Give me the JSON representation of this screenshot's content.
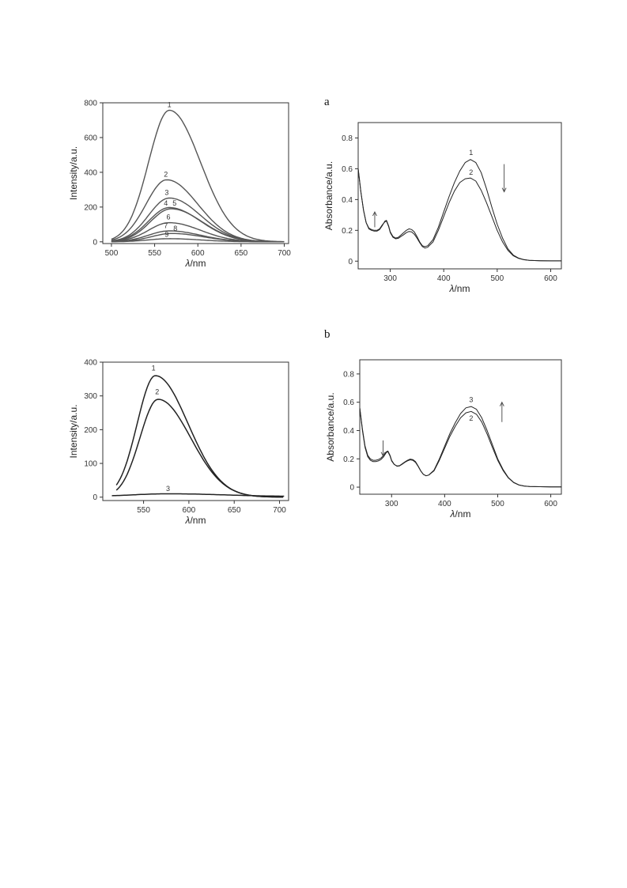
{
  "panel_labels": [
    "a",
    "b"
  ],
  "chart_data": [
    {
      "type": "line",
      "xlabel": "λ/nm",
      "ylabel": "Intensity/a.u.",
      "xlim": [
        490,
        705
      ],
      "ylim": [
        -10,
        800
      ],
      "xticks": [
        500,
        550,
        600,
        650,
        700
      ],
      "yticks": [
        0,
        200,
        400,
        600,
        800
      ],
      "style": {
        "stroke": "#555555",
        "width": 1.4
      },
      "series": [
        {
          "label": "1",
          "peak": 757,
          "center": 567,
          "w_left": 24,
          "w_right": 36,
          "x_start": 500,
          "label_at": [
            567,
            775
          ]
        },
        {
          "label": "2",
          "peak": 357,
          "center": 564,
          "w_left": 24,
          "w_right": 36,
          "x_start": 500,
          "label_at": [
            563,
            375
          ]
        },
        {
          "label": "3",
          "peak": 252,
          "center": 567,
          "w_left": 24,
          "w_right": 36,
          "x_start": 500,
          "label_at": [
            564,
            270
          ]
        },
        {
          "label": "4",
          "peak": 197,
          "center": 567,
          "w_left": 24,
          "w_right": 36,
          "x_start": 500,
          "label_at": [
            563,
            208
          ]
        },
        {
          "label": "5",
          "peak": 190,
          "center": 569,
          "w_left": 24,
          "w_right": 36,
          "x_start": 500,
          "label_at": [
            573,
            208
          ]
        },
        {
          "label": "6",
          "peak": 110,
          "center": 567,
          "w_left": 24,
          "w_right": 36,
          "x_start": 500,
          "label_at": [
            566,
            128
          ]
        },
        {
          "label": "7",
          "peak": 63,
          "center": 567,
          "w_left": 24,
          "w_right": 36,
          "x_start": 500,
          "label_at": [
            563,
            78
          ]
        },
        {
          "label": "8",
          "peak": 48,
          "center": 570,
          "w_left": 24,
          "w_right": 36,
          "x_start": 500,
          "label_at": [
            574,
            62
          ]
        },
        {
          "label": "9",
          "peak": 18,
          "center": 567,
          "w_left": 24,
          "w_right": 36,
          "x_start": 500,
          "label_at": [
            564,
            28
          ]
        }
      ]
    },
    {
      "type": "line",
      "xlabel": "λ/nm",
      "ylabel": "Absorbance/a.u.",
      "xlim": [
        240,
        620
      ],
      "ylim": [
        -0.05,
        0.9
      ],
      "xticks": [
        300,
        400,
        500,
        600
      ],
      "yticks": [
        0.0,
        0.2,
        0.4,
        0.6,
        0.8
      ],
      "style": {
        "stroke": "#222222",
        "width": 1.0
      },
      "series": [
        {
          "label": "1",
          "label_at": [
            451,
            0.69
          ],
          "x": [
            240,
            245,
            250,
            255,
            260,
            265,
            270,
            275,
            280,
            285,
            290,
            293,
            297,
            300,
            305,
            310,
            315,
            320,
            325,
            330,
            335,
            340,
            345,
            350,
            355,
            360,
            365,
            370,
            380,
            390,
            400,
            410,
            420,
            430,
            440,
            450,
            460,
            470,
            480,
            490,
            500,
            510,
            520,
            530,
            540,
            550,
            560,
            580,
            600,
            620
          ],
          "y": [
            0.6,
            0.45,
            0.33,
            0.25,
            0.21,
            0.2,
            0.195,
            0.195,
            0.205,
            0.23,
            0.26,
            0.265,
            0.23,
            0.19,
            0.16,
            0.15,
            0.155,
            0.17,
            0.185,
            0.2,
            0.21,
            0.205,
            0.19,
            0.16,
            0.125,
            0.1,
            0.095,
            0.1,
            0.14,
            0.22,
            0.32,
            0.42,
            0.51,
            0.585,
            0.64,
            0.66,
            0.64,
            0.575,
            0.47,
            0.35,
            0.24,
            0.15,
            0.08,
            0.04,
            0.02,
            0.01,
            0.005,
            0.003,
            0.002,
            0.002
          ]
        },
        {
          "label": "2",
          "label_at": [
            451,
            0.56
          ],
          "x": [
            240,
            245,
            250,
            255,
            260,
            265,
            270,
            275,
            280,
            285,
            290,
            293,
            297,
            300,
            305,
            310,
            315,
            320,
            325,
            330,
            335,
            340,
            345,
            350,
            355,
            360,
            365,
            370,
            380,
            390,
            400,
            410,
            420,
            430,
            440,
            450,
            460,
            470,
            480,
            490,
            500,
            510,
            520,
            530,
            540,
            550,
            560,
            580,
            600,
            620
          ],
          "y": [
            0.6,
            0.45,
            0.33,
            0.25,
            0.215,
            0.205,
            0.2,
            0.2,
            0.21,
            0.235,
            0.255,
            0.26,
            0.225,
            0.185,
            0.155,
            0.145,
            0.148,
            0.16,
            0.172,
            0.185,
            0.193,
            0.19,
            0.175,
            0.15,
            0.12,
            0.095,
            0.085,
            0.09,
            0.125,
            0.2,
            0.29,
            0.38,
            0.455,
            0.51,
            0.535,
            0.54,
            0.52,
            0.46,
            0.38,
            0.29,
            0.2,
            0.125,
            0.07,
            0.035,
            0.018,
            0.009,
            0.005,
            0.003,
            0.002,
            0.002
          ]
        }
      ],
      "annotations": [
        {
          "type": "arrow",
          "direction": "up",
          "x": 271,
          "y_from": 0.22,
          "y_to": 0.32
        },
        {
          "type": "arrow",
          "direction": "down",
          "x": 513,
          "y_from": 0.63,
          "y_to": 0.45
        }
      ]
    },
    {
      "type": "line",
      "xlabel": "λ/nm",
      "ylabel": "Intensity/a.u.",
      "xlim": [
        505,
        710
      ],
      "ylim": [
        -10,
        400
      ],
      "xticks": [
        550,
        600,
        650,
        700
      ],
      "yticks": [
        0,
        100,
        200,
        300,
        400
      ],
      "style": {
        "stroke": "#222222",
        "width": 1.5
      },
      "series": [
        {
          "label": "1",
          "peak": 360,
          "center": 563,
          "w_left": 20,
          "w_right": 36,
          "x_start": 520,
          "label_at": [
            561,
            375
          ]
        },
        {
          "label": "2",
          "peak": 290,
          "center": 566,
          "w_left": 20,
          "w_right": 36,
          "x_start": 520,
          "label_at": [
            565,
            305
          ]
        },
        {
          "label": "3",
          "peak": 8,
          "center": 578,
          "w_left": 40,
          "w_right": 60,
          "x_start": 515,
          "base": 2,
          "label_at": [
            577,
            18
          ]
        }
      ]
    },
    {
      "type": "line",
      "xlabel": "λ/nm",
      "ylabel": "Absorbance/a.u.",
      "xlim": [
        240,
        620
      ],
      "ylim": [
        -0.05,
        0.9
      ],
      "xticks": [
        300,
        400,
        500,
        600
      ],
      "yticks": [
        0.0,
        0.2,
        0.4,
        0.6,
        0.8
      ],
      "style": {
        "stroke": "#222222",
        "width": 1.0
      },
      "series": [
        {
          "label": "3",
          "label_at": [
            450,
            0.6
          ],
          "x": [
            240,
            245,
            250,
            255,
            260,
            265,
            270,
            275,
            280,
            285,
            290,
            293,
            297,
            300,
            305,
            310,
            315,
            320,
            325,
            330,
            335,
            340,
            345,
            350,
            355,
            360,
            365,
            370,
            380,
            390,
            400,
            410,
            420,
            430,
            440,
            450,
            460,
            470,
            480,
            490,
            500,
            510,
            520,
            530,
            540,
            550,
            560,
            580,
            600,
            620
          ],
          "y": [
            0.56,
            0.4,
            0.28,
            0.215,
            0.19,
            0.18,
            0.18,
            0.185,
            0.195,
            0.215,
            0.245,
            0.25,
            0.22,
            0.185,
            0.16,
            0.15,
            0.152,
            0.165,
            0.178,
            0.19,
            0.198,
            0.195,
            0.18,
            0.15,
            0.115,
            0.09,
            0.08,
            0.085,
            0.12,
            0.2,
            0.29,
            0.38,
            0.455,
            0.52,
            0.56,
            0.57,
            0.55,
            0.49,
            0.4,
            0.3,
            0.2,
            0.125,
            0.068,
            0.034,
            0.016,
            0.008,
            0.004,
            0.003,
            0.002,
            0.002
          ]
        },
        {
          "label": "2",
          "label_at": [
            450,
            0.47
          ],
          "x": [
            240,
            245,
            250,
            255,
            260,
            265,
            270,
            275,
            280,
            285,
            290,
            293,
            297,
            300,
            305,
            310,
            315,
            320,
            325,
            330,
            335,
            340,
            345,
            350,
            355,
            360,
            365,
            370,
            380,
            390,
            400,
            410,
            420,
            430,
            440,
            450,
            460,
            470,
            480,
            490,
            500,
            510,
            520,
            530,
            540,
            550,
            560,
            580,
            600,
            620
          ],
          "y": [
            0.56,
            0.41,
            0.29,
            0.225,
            0.2,
            0.19,
            0.19,
            0.195,
            0.205,
            0.225,
            0.25,
            0.255,
            0.225,
            0.19,
            0.162,
            0.148,
            0.15,
            0.162,
            0.175,
            0.186,
            0.193,
            0.19,
            0.175,
            0.147,
            0.113,
            0.09,
            0.08,
            0.085,
            0.115,
            0.19,
            0.275,
            0.36,
            0.43,
            0.49,
            0.525,
            0.535,
            0.515,
            0.46,
            0.375,
            0.28,
            0.19,
            0.118,
            0.065,
            0.032,
            0.015,
            0.007,
            0.004,
            0.003,
            0.002,
            0.002
          ]
        }
      ],
      "annotations": [
        {
          "type": "arrow",
          "direction": "down",
          "x": 284,
          "y_from": 0.33,
          "y_to": 0.22
        },
        {
          "type": "arrow",
          "direction": "up",
          "x": 508,
          "y_from": 0.46,
          "y_to": 0.6
        }
      ]
    }
  ]
}
